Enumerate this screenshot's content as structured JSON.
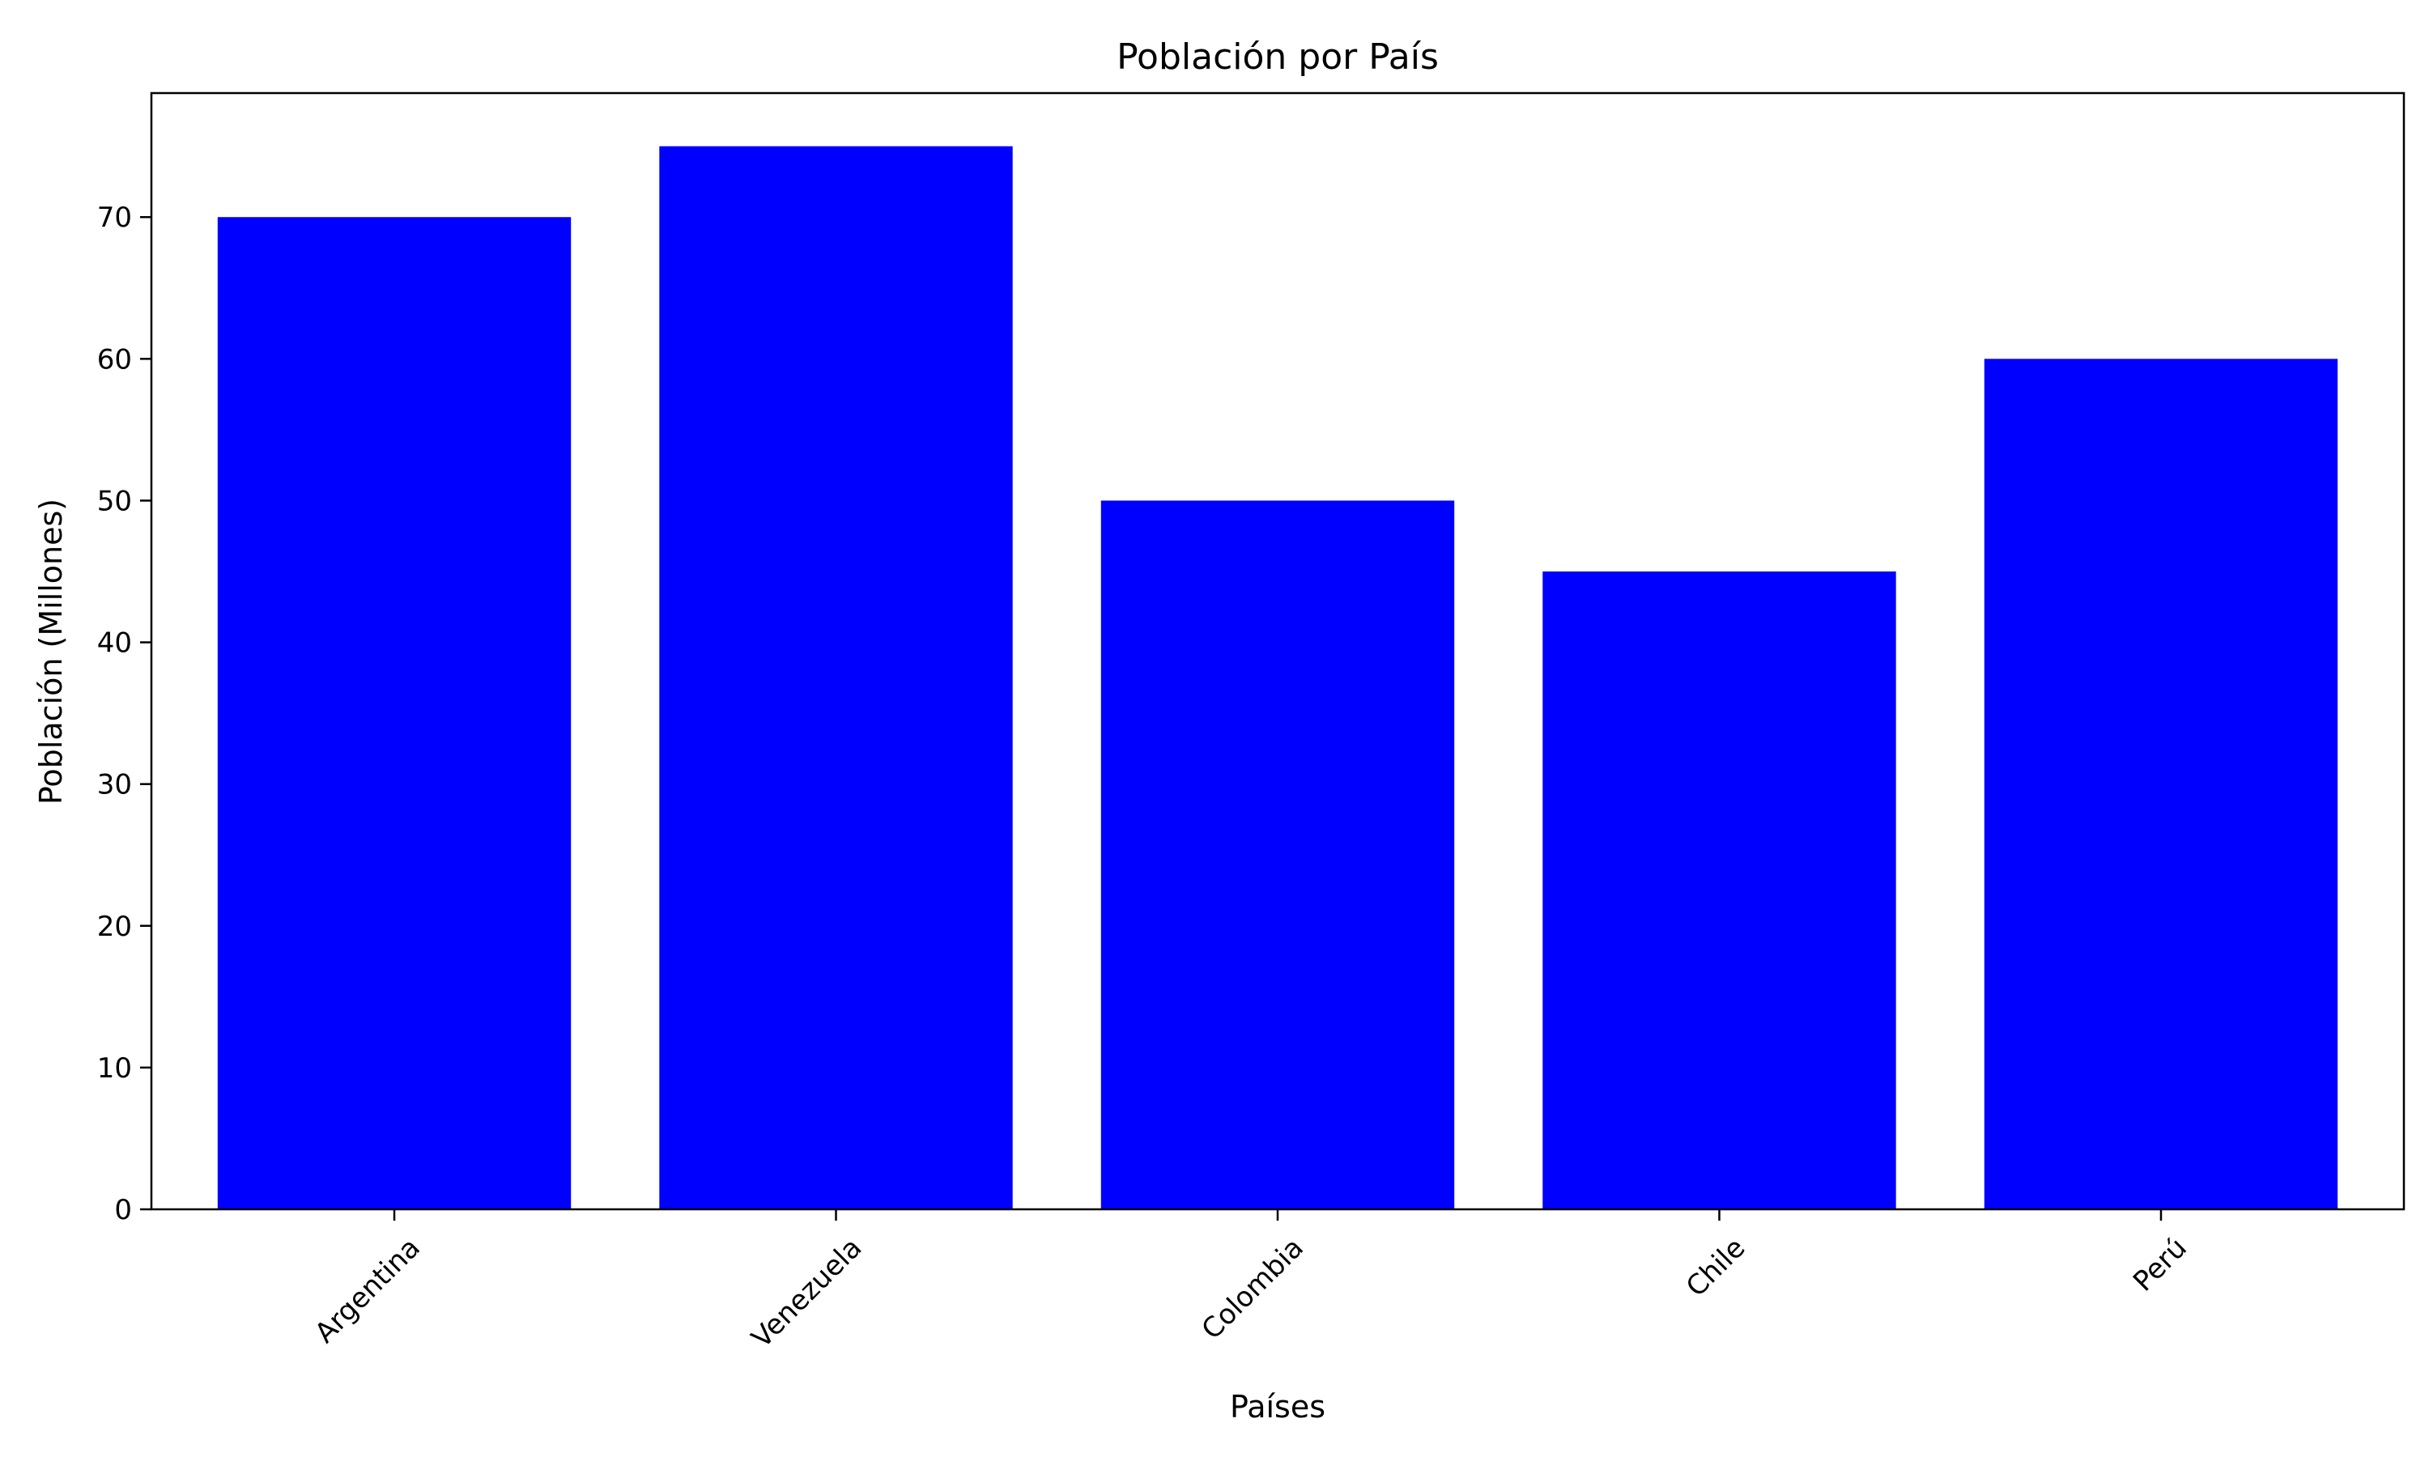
{
  "chart_data": {
    "type": "bar",
    "title": "Población por País",
    "xlabel": "Países",
    "ylabel": "Población (Millones)",
    "categories": [
      "Argentina",
      "Venezuela",
      "Colombia",
      "Chile",
      "Perú"
    ],
    "values": [
      70,
      75,
      50,
      45,
      60
    ],
    "ylim": [
      0,
      78.75
    ],
    "yticks": [
      0,
      10,
      20,
      30,
      40,
      50,
      60,
      70
    ],
    "xtick_rotation_deg": 45,
    "bar_color": "#0000ff",
    "grid": false,
    "legend": "none"
  }
}
